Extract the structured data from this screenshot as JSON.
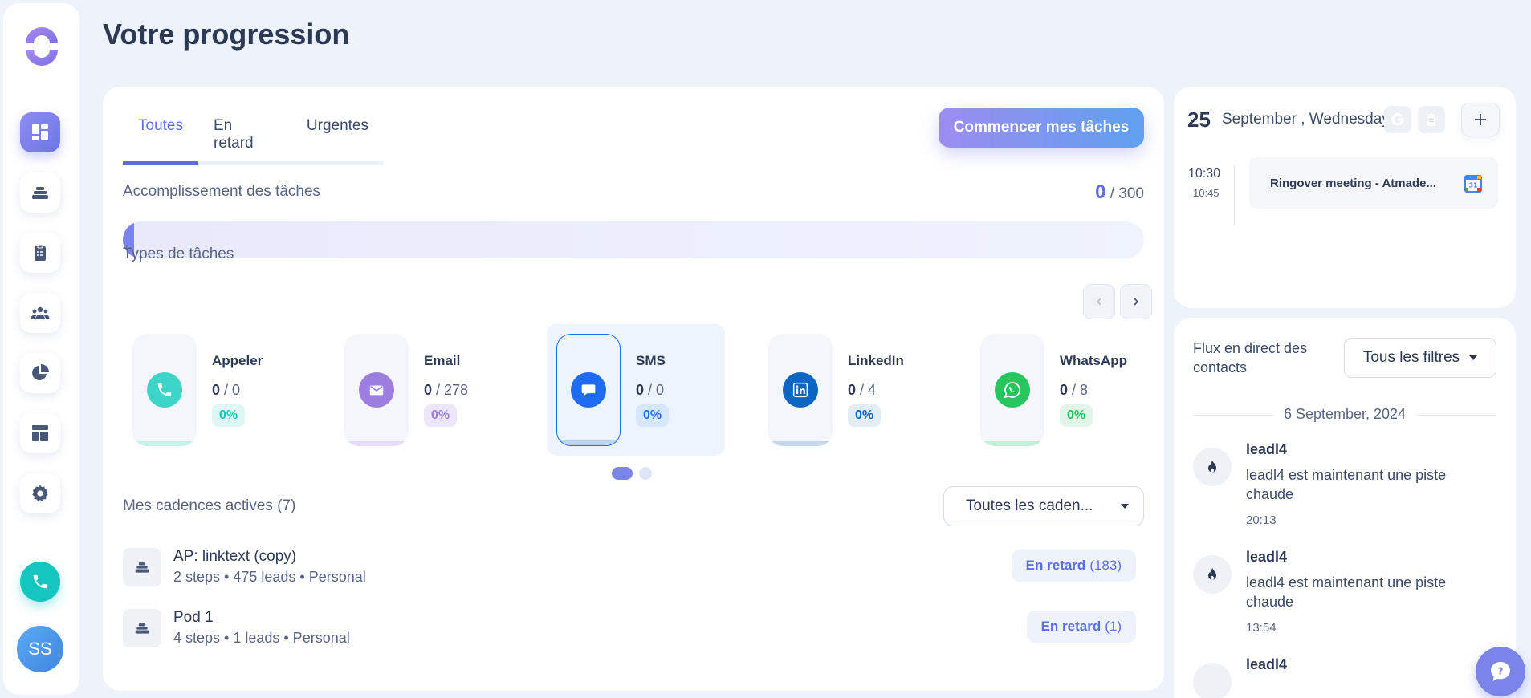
{
  "page": {
    "title": "Votre progression"
  },
  "sidebar": {
    "items": [
      {
        "name": "dashboard",
        "icon": "dashboard-icon",
        "active": true
      },
      {
        "name": "cadences",
        "icon": "stack-icon"
      },
      {
        "name": "tasks",
        "icon": "clipboard-icon"
      },
      {
        "name": "contacts",
        "icon": "people-icon"
      },
      {
        "name": "reports",
        "icon": "pie-chart-icon"
      },
      {
        "name": "templates",
        "icon": "layout-icon"
      },
      {
        "name": "settings",
        "icon": "gear-icon"
      }
    ],
    "call_icon": "phone-icon",
    "avatar_initials": "SS"
  },
  "tabs": [
    "Toutes",
    "En retard",
    "Urgentes"
  ],
  "start_button": "Commencer mes tâches",
  "completion": {
    "label": "Accomplissement des tâches",
    "done": "0",
    "total": "/ 300",
    "progress_fraction": 0
  },
  "task_types": {
    "label": "Types de tâches",
    "items": [
      {
        "name": "Appeler",
        "done": "0",
        "total": "/ 0",
        "pct": "0%",
        "color": "#3dd5c7",
        "tint": "#dff7f4",
        "icon": "phone-icon"
      },
      {
        "name": "Email",
        "done": "0",
        "total": "/ 278",
        "pct": "0%",
        "color": "#9b7ee0",
        "tint": "#ece6fa",
        "icon": "mail-icon"
      },
      {
        "name": "SMS",
        "done": "0",
        "total": "/ 0",
        "pct": "0%",
        "color": "#1e6cf0",
        "tint": "#dce8fb",
        "icon": "sms-icon"
      },
      {
        "name": "LinkedIn",
        "done": "0",
        "total": "/ 4",
        "pct": "0%",
        "color": "#0a66c2",
        "tint": "#e2edf6",
        "icon": "linkedin-icon"
      },
      {
        "name": "WhatsApp",
        "done": "0",
        "total": "/ 8",
        "pct": "0%",
        "color": "#27c55e",
        "tint": "#e1f6e8",
        "icon": "whatsapp-icon"
      }
    ]
  },
  "cadences": {
    "label": "Mes cadences actives (7)",
    "filter": "Toutes les caden...",
    "rows": [
      {
        "name": "AP: linktext (copy)",
        "meta": "2 steps • 475 leads • Personal",
        "status": "En retard",
        "count": "(183)"
      },
      {
        "name": "Pod 1",
        "meta": "4 steps • 1 leads • Personal",
        "status": "En retard",
        "count": "(1)"
      }
    ]
  },
  "calendar": {
    "day": "25",
    "date": "September , Wednesday",
    "event": {
      "start": "10:30",
      "end": "10:45",
      "title": "Ringover meeting - Atmade..."
    }
  },
  "feed": {
    "title": "Flux en direct des contacts",
    "filter": "Tous les filtres",
    "date": "6 September, 2024",
    "items": [
      {
        "name": "leadl4",
        "message": "leadl4 est maintenant une piste chaude",
        "time": "20:13"
      },
      {
        "name": "leadl4",
        "message": "leadl4 est maintenant une piste chaude",
        "time": "13:54"
      },
      {
        "name": "leadl4"
      }
    ]
  }
}
